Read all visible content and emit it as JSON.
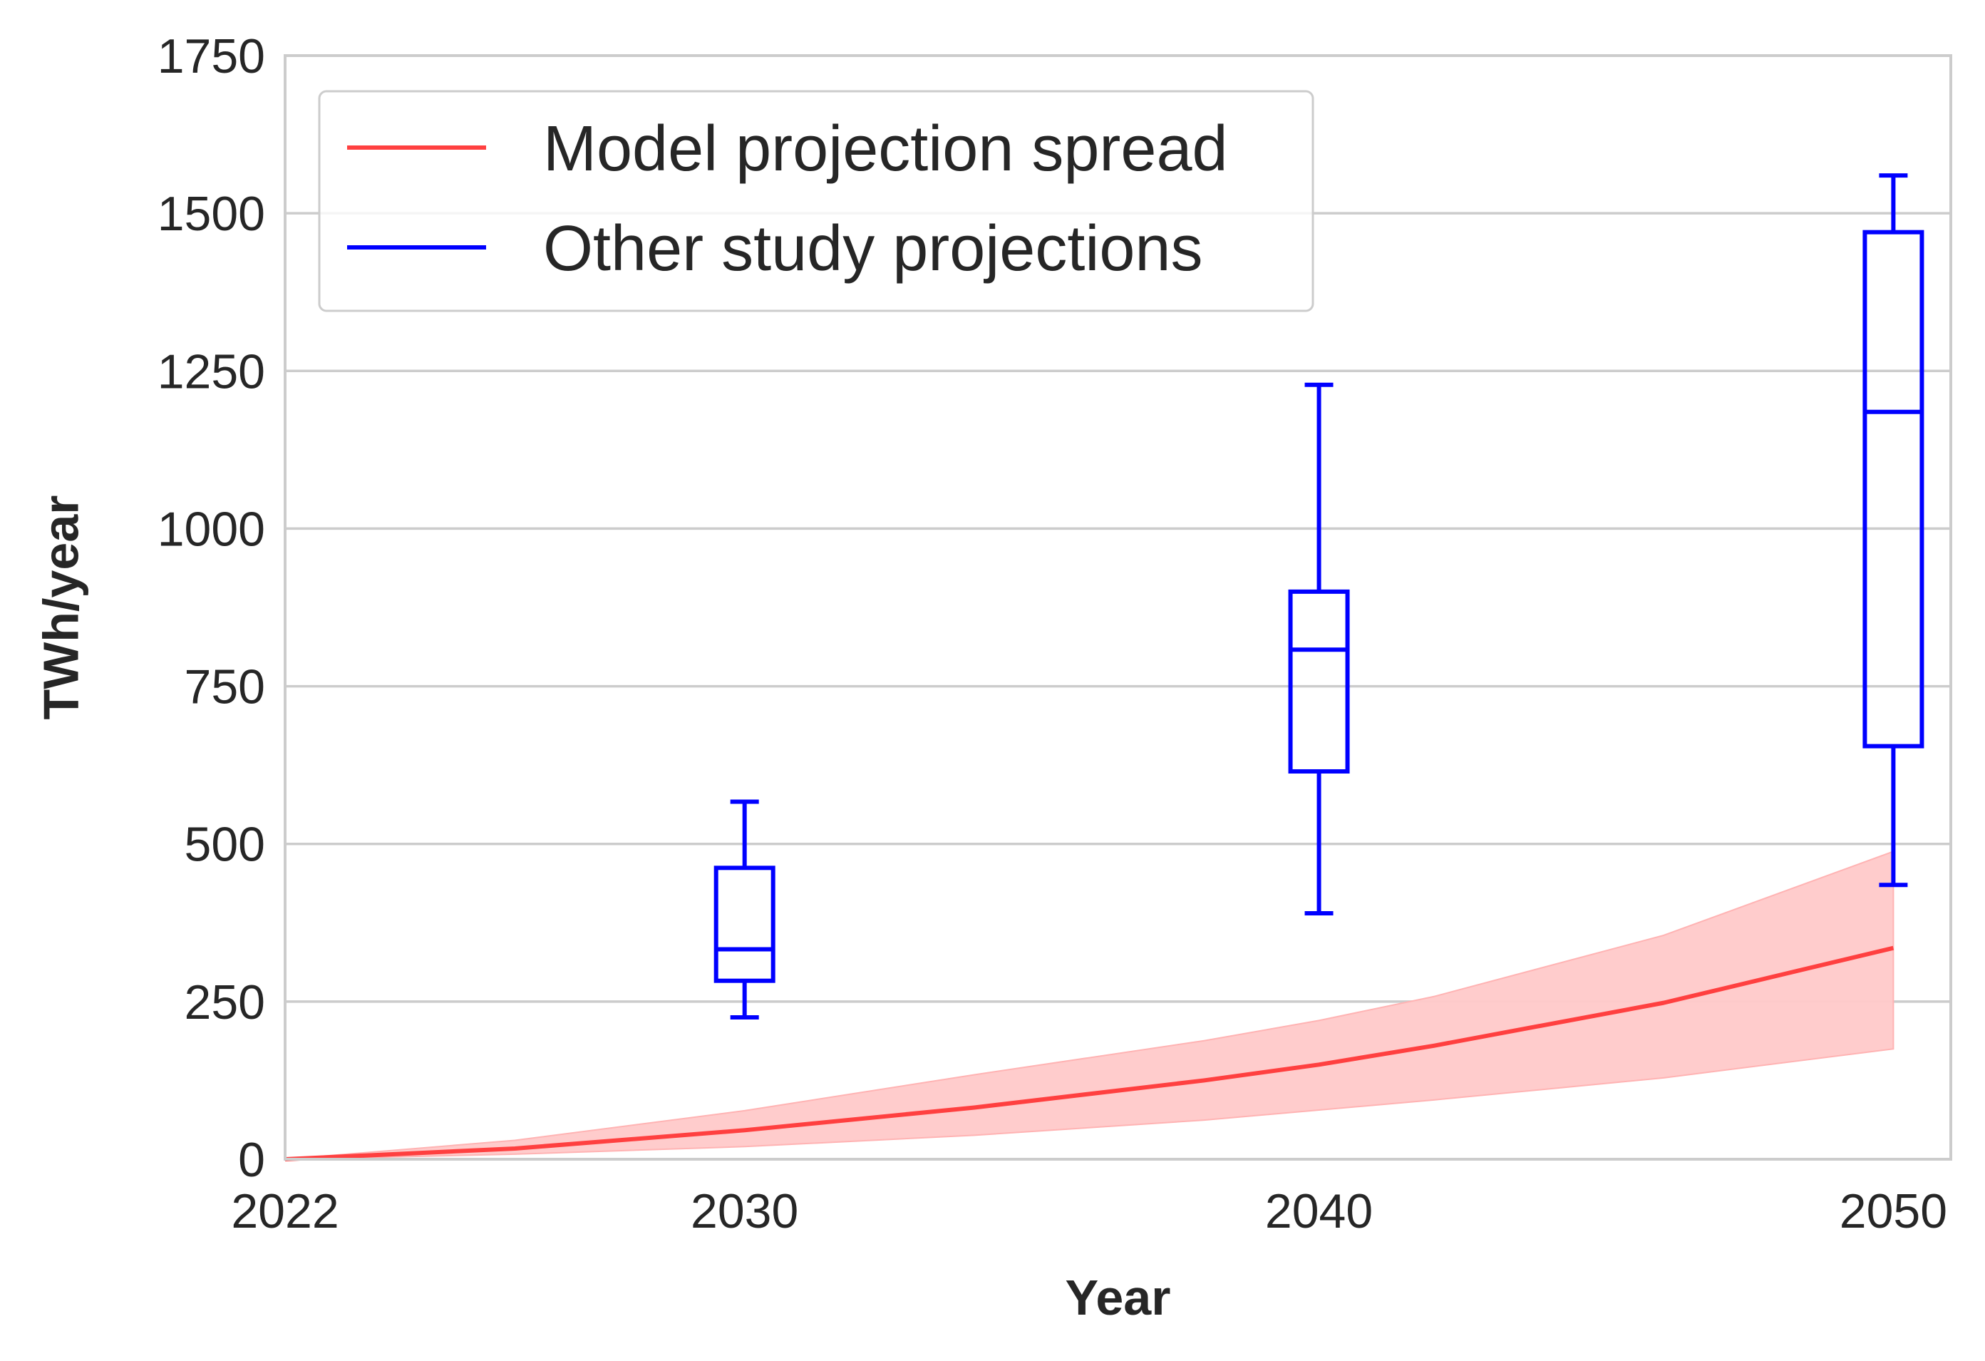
{
  "chart_data": {
    "type": "line",
    "title": "",
    "xlabel": "Year",
    "ylabel": "TWh/year",
    "xlim": [
      2022,
      2051
    ],
    "ylim": [
      0,
      1750
    ],
    "x_ticks": [
      2022,
      2030,
      2040,
      2050
    ],
    "y_ticks": [
      0,
      250,
      500,
      750,
      1000,
      1250,
      1500,
      1750
    ],
    "grid": "horizontal",
    "legend_position": "upper-left",
    "legend": [
      {
        "label": "Model projection spread",
        "color": "#ff4040"
      },
      {
        "label": "Other study projections",
        "color": "#0000ff"
      }
    ],
    "colors": {
      "line": "#ff4040",
      "band": "#ffc9c9",
      "box": "#0000ff",
      "grid": "#cccccc"
    },
    "series": [
      {
        "name": "Model projection spread",
        "kind": "line-with-band",
        "x": [
          2022,
          2026,
          2030,
          2034,
          2038,
          2040,
          2042,
          2046,
          2050
        ],
        "y": [
          0,
          17,
          46,
          82,
          125,
          150,
          180,
          248,
          335
        ],
        "lower": [
          0,
          8,
          20,
          38,
          62,
          78,
          94,
          129,
          175
        ],
        "upper": [
          0,
          30,
          77,
          134,
          188,
          220,
          258,
          355,
          488
        ]
      },
      {
        "name": "Other study projections",
        "kind": "boxplot",
        "boxes": [
          {
            "x": 2030,
            "whisker_low": 225,
            "q1": 283,
            "median": 333,
            "q3": 462,
            "whisker_high": 567
          },
          {
            "x": 2040,
            "whisker_low": 390,
            "q1": 615,
            "median": 808,
            "q3": 900,
            "whisker_high": 1228
          },
          {
            "x": 2050,
            "whisker_low": 435,
            "q1": 655,
            "median": 1185,
            "q3": 1470,
            "whisker_high": 1560
          }
        ]
      }
    ]
  }
}
